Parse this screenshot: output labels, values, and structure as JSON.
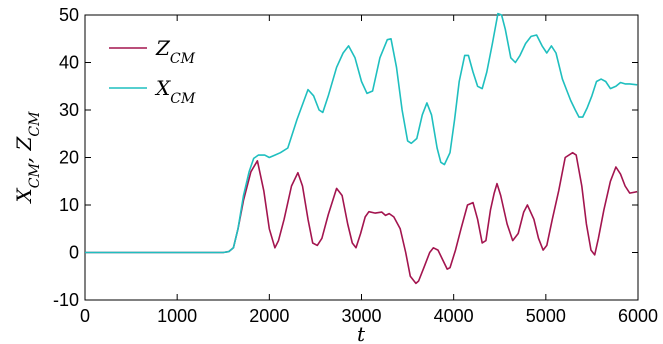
{
  "chart_data": {
    "type": "line",
    "xlabel": "t",
    "ylabel": "X_CM, Z_CM",
    "xlim": [
      0,
      6000
    ],
    "ylim": [
      -10,
      50
    ],
    "xticks": [
      0,
      1000,
      2000,
      3000,
      4000,
      5000,
      6000
    ],
    "yticks": [
      -10,
      0,
      10,
      20,
      30,
      40,
      50
    ],
    "grid": false,
    "legend_position": "top-left",
    "series": [
      {
        "name": "Z_CM",
        "color": "#a3154f",
        "points": [
          [
            0,
            0
          ],
          [
            1000,
            0
          ],
          [
            1500,
            0
          ],
          [
            1560,
            0.2
          ],
          [
            1610,
            1
          ],
          [
            1660,
            5
          ],
          [
            1720,
            11
          ],
          [
            1800,
            17
          ],
          [
            1870,
            19.3
          ],
          [
            1940,
            13
          ],
          [
            2000,
            5
          ],
          [
            2060,
            1
          ],
          [
            2100,
            2.5
          ],
          [
            2160,
            7
          ],
          [
            2240,
            14
          ],
          [
            2310,
            16.8
          ],
          [
            2360,
            14
          ],
          [
            2420,
            7
          ],
          [
            2470,
            2
          ],
          [
            2520,
            1.5
          ],
          [
            2570,
            3
          ],
          [
            2640,
            8
          ],
          [
            2730,
            13.5
          ],
          [
            2790,
            12
          ],
          [
            2850,
            6
          ],
          [
            2900,
            2
          ],
          [
            2940,
            1
          ],
          [
            2990,
            4
          ],
          [
            3040,
            7.5
          ],
          [
            3080,
            8.6
          ],
          [
            3150,
            8.3
          ],
          [
            3220,
            8.5
          ],
          [
            3260,
            7.8
          ],
          [
            3300,
            8.2
          ],
          [
            3350,
            7.5
          ],
          [
            3420,
            5
          ],
          [
            3480,
            0
          ],
          [
            3530,
            -5
          ],
          [
            3590,
            -6.5
          ],
          [
            3620,
            -6
          ],
          [
            3680,
            -3
          ],
          [
            3740,
            0
          ],
          [
            3780,
            1
          ],
          [
            3830,
            0.5
          ],
          [
            3880,
            -1.5
          ],
          [
            3930,
            -3.5
          ],
          [
            3960,
            -3.2
          ],
          [
            4020,
            0.5
          ],
          [
            4080,
            5
          ],
          [
            4150,
            10
          ],
          [
            4210,
            10.5
          ],
          [
            4260,
            7
          ],
          [
            4310,
            2
          ],
          [
            4350,
            2.5
          ],
          [
            4400,
            9
          ],
          [
            4440,
            12.5
          ],
          [
            4470,
            14.5
          ],
          [
            4510,
            12
          ],
          [
            4580,
            6
          ],
          [
            4640,
            2.5
          ],
          [
            4700,
            4
          ],
          [
            4760,
            8.5
          ],
          [
            4800,
            10
          ],
          [
            4870,
            7
          ],
          [
            4920,
            3
          ],
          [
            4970,
            0.5
          ],
          [
            5010,
            1.5
          ],
          [
            5070,
            7
          ],
          [
            5140,
            13
          ],
          [
            5210,
            20
          ],
          [
            5290,
            21
          ],
          [
            5330,
            20.5
          ],
          [
            5390,
            14
          ],
          [
            5440,
            6
          ],
          [
            5490,
            0.5
          ],
          [
            5530,
            -0.5
          ],
          [
            5570,
            3
          ],
          [
            5630,
            9
          ],
          [
            5700,
            15
          ],
          [
            5760,
            18
          ],
          [
            5810,
            16.5
          ],
          [
            5860,
            14
          ],
          [
            5910,
            12.5
          ],
          [
            5990,
            12.8
          ]
        ]
      },
      {
        "name": "X_CM",
        "color": "#1fbfbf",
        "points": [
          [
            0,
            0
          ],
          [
            1000,
            0
          ],
          [
            1500,
            0
          ],
          [
            1560,
            0.2
          ],
          [
            1610,
            1
          ],
          [
            1660,
            5
          ],
          [
            1720,
            12
          ],
          [
            1780,
            17
          ],
          [
            1830,
            19.8
          ],
          [
            1880,
            20.5
          ],
          [
            1950,
            20.5
          ],
          [
            2000,
            20
          ],
          [
            2060,
            20.5
          ],
          [
            2120,
            21
          ],
          [
            2200,
            22
          ],
          [
            2300,
            28
          ],
          [
            2420,
            34.3
          ],
          [
            2480,
            33
          ],
          [
            2540,
            30
          ],
          [
            2580,
            29.5
          ],
          [
            2640,
            33
          ],
          [
            2730,
            39
          ],
          [
            2800,
            42
          ],
          [
            2860,
            43.5
          ],
          [
            2930,
            41
          ],
          [
            3000,
            36
          ],
          [
            3060,
            33.5
          ],
          [
            3120,
            34
          ],
          [
            3200,
            41
          ],
          [
            3280,
            44.8
          ],
          [
            3320,
            45
          ],
          [
            3380,
            39
          ],
          [
            3440,
            30
          ],
          [
            3500,
            23.5
          ],
          [
            3540,
            23
          ],
          [
            3600,
            24
          ],
          [
            3660,
            29
          ],
          [
            3710,
            31.5
          ],
          [
            3760,
            29
          ],
          [
            3820,
            22
          ],
          [
            3860,
            19
          ],
          [
            3900,
            18.5
          ],
          [
            3960,
            21
          ],
          [
            4010,
            28
          ],
          [
            4060,
            36
          ],
          [
            4120,
            41.5
          ],
          [
            4160,
            41.5
          ],
          [
            4210,
            38
          ],
          [
            4260,
            35
          ],
          [
            4310,
            34.5
          ],
          [
            4360,
            38
          ],
          [
            4420,
            44
          ],
          [
            4480,
            50.3
          ],
          [
            4520,
            50
          ],
          [
            4560,
            47
          ],
          [
            4620,
            41
          ],
          [
            4670,
            40
          ],
          [
            4720,
            41.5
          ],
          [
            4780,
            44
          ],
          [
            4840,
            45.5
          ],
          [
            4900,
            45.8
          ],
          [
            4960,
            43.5
          ],
          [
            5010,
            42
          ],
          [
            5060,
            43.5
          ],
          [
            5110,
            42
          ],
          [
            5180,
            36.5
          ],
          [
            5230,
            34
          ],
          [
            5270,
            32
          ],
          [
            5320,
            30
          ],
          [
            5360,
            28.5
          ],
          [
            5400,
            28.5
          ],
          [
            5450,
            30.5
          ],
          [
            5500,
            33
          ],
          [
            5550,
            36
          ],
          [
            5600,
            36.5
          ],
          [
            5650,
            36
          ],
          [
            5700,
            34.5
          ],
          [
            5760,
            35
          ],
          [
            5810,
            35.8
          ],
          [
            5860,
            35.5
          ],
          [
            5910,
            35.5
          ],
          [
            5990,
            35.3
          ]
        ]
      }
    ]
  }
}
